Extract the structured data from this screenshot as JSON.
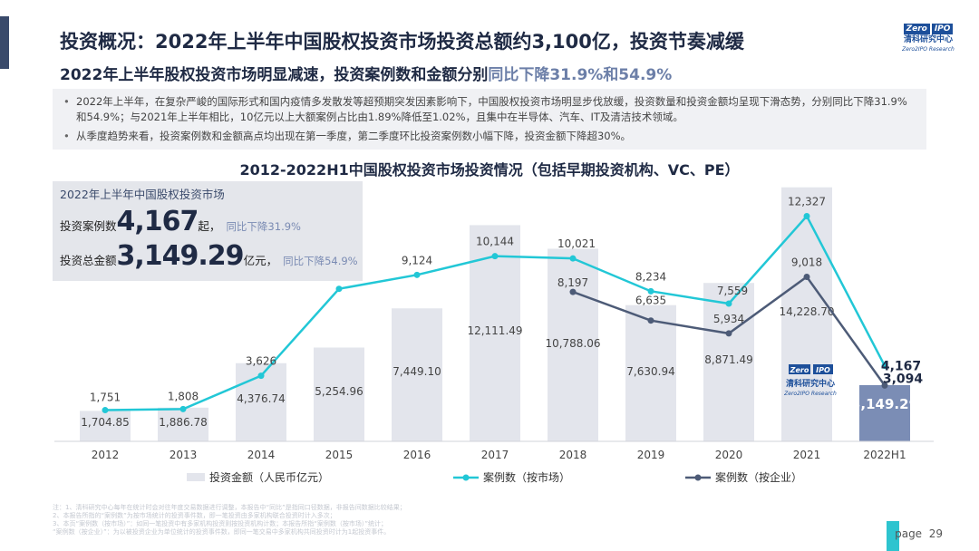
{
  "header": {
    "title": "投资概况：2022年上半年中国股权投资市场投资总额约3,100亿，投资节奏减缓",
    "subtitle_main": "2022年上半年股权投资市场明显减速，投资案例数和金额分别",
    "subtitle_highlight": "同比下降31.9%和54.9%"
  },
  "logo": {
    "badge_left": "Zero",
    "badge_right": "IPO",
    "name_cn": "清科研究中心",
    "name_en": "Zero2IPO Research"
  },
  "bullets": [
    "2022年上半年，在复杂严峻的国际形式和国内疫情多发散发等超预期突发因素影响下，中国股权投资市场明显步伐放缓，投资数量和投资金额均呈现下滑态势，分别同比下降31.9%和54.9%；与2021年上半年相比，10亿元以上大额案例占比由1.89%降低至1.02%，且集中在半导体、汽车、IT及清洁技术领域。",
    "从季度趋势来看，投资案例数和金额高点均出现在第一季度，第二季度环比投资案例数小幅下降，投资金额下降超30%。"
  ],
  "summary": {
    "heading": "2022年上半年中国股权投资市场",
    "cases_label": "投资案例数",
    "cases_value": "4,167",
    "cases_unit": "起，",
    "cases_yoy": "同比下降31.9%",
    "amount_label": "投资总金额",
    "amount_value": "3,149.29",
    "amount_unit": "亿元，",
    "amount_yoy": "同比下降54.9%"
  },
  "chart_data": {
    "type": "bar",
    "title": "2012-2022H1中国股权投资市场投资情况（包括早期投资机构、VC、PE）",
    "categories": [
      "2012",
      "2013",
      "2014",
      "2015",
      "2016",
      "2017",
      "2018",
      "2019",
      "2020",
      "2021",
      "2022H1"
    ],
    "series": [
      {
        "name": "投资金额（人民币亿元）",
        "type": "bar",
        "values": [
          1704.85,
          1886.78,
          4376.74,
          5254.96,
          7449.1,
          12111.49,
          10788.06,
          7630.94,
          8871.49,
          14228.7,
          3149.29
        ],
        "labels": [
          "1,704.85",
          "1,886.78",
          "4,376.74",
          "5,254.96",
          "7,449.10",
          "12,111.49",
          "10,788.06",
          "7,630.94",
          "8,871.49",
          "14,228.70",
          "3,149.29"
        ]
      },
      {
        "name": "案例数（按市场）",
        "type": "line",
        "values": [
          1751,
          1808,
          3626,
          8365,
          9124,
          10144,
          10021,
          8234,
          7559,
          12327,
          4167
        ],
        "labels": [
          "1,751",
          "1,808",
          "3,626",
          "8,365",
          "9,124",
          "10,144",
          "10,021",
          "8,234",
          "7,559",
          "12,327",
          "4,167"
        ]
      },
      {
        "name": "案例数（按企业）",
        "type": "line",
        "x": [
          "2018",
          "2019",
          "2020",
          "2021",
          "2022H1"
        ],
        "values": [
          8197,
          6635,
          5934,
          9018,
          3094
        ],
        "labels": [
          "8,197",
          "6,635",
          "5,934",
          "9,018",
          "3,094"
        ]
      }
    ],
    "colors": {
      "bar": "#e3e5ec",
      "bar_highlight": "#7b8db5",
      "line_market": "#22c7d6",
      "line_enterprise": "#4d5b77"
    },
    "legend_position": "bottom"
  },
  "footnote": [
    "注：1、清科研究中心每年在统计时会对往年度交易数据进行调整，本报告中“同比”是指同口径数据，非报告间数据比较结果；",
    "2、本报告所指的“案例数”为按市场统计的投资事件数，即一笔投资由多家机构联合投资时计入多次；",
    "3、本页“案例数（按市场）”：如同一笔投资中有多家机构投资则按投资机构计数；本报告所指“案例数（按市场）”统计；",
    "“案例数（按企业）”：为以被投资企业为单位统计的投资事件数，即同一笔交易中多家机构共同投资时计为1起投资事件。"
  ],
  "page": {
    "label": "page",
    "number": "29"
  }
}
